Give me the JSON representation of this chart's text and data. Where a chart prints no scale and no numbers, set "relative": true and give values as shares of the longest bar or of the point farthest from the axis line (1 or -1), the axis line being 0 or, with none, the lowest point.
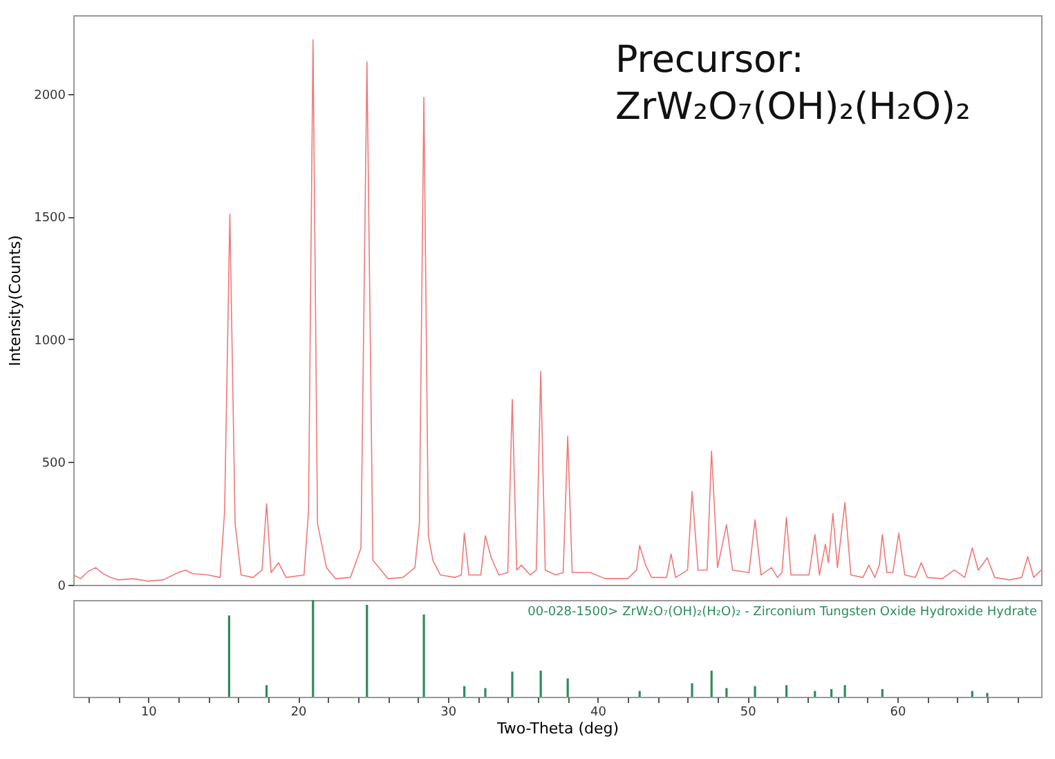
{
  "chart_data": [
    {
      "type": "line",
      "ylabel": "Intensity(Counts)",
      "annotations": [
        "Precursor:",
        "ZrW₂O₇(OH)₂(H₂O)₂"
      ],
      "xlim": [
        5,
        69.6
      ],
      "ylim": [
        0,
        2320
      ],
      "yticks": [
        0,
        500,
        1000,
        1500,
        2000
      ],
      "tick_labels": "y",
      "grid": false,
      "legend": false,
      "series": [
        {
          "color": "#f07878",
          "x": [
            5,
            5.5,
            6,
            6.5,
            7,
            7.5,
            8,
            9,
            10,
            11,
            12,
            12.5,
            13,
            14,
            14.8,
            15.1,
            15.45,
            15.8,
            16.2,
            17.0,
            17.6,
            17.9,
            18.2,
            18.7,
            19.2,
            20.4,
            20.7,
            21.0,
            21.3,
            21.9,
            22.5,
            23.5,
            24.2,
            24.6,
            25.0,
            26,
            27,
            27.8,
            28.1,
            28.4,
            28.7,
            29.0,
            29.5,
            30.5,
            30.9,
            31.1,
            31.4,
            32.2,
            32.5,
            32.9,
            33.4,
            34.0,
            34.3,
            34.6,
            34.9,
            35.5,
            35.9,
            36.2,
            36.5,
            37.2,
            37.7,
            38.0,
            38.3,
            39.5,
            40.5,
            42.0,
            42.6,
            42.8,
            43.2,
            43.6,
            44.6,
            44.9,
            45.2,
            46.0,
            46.3,
            46.7,
            47.3,
            47.6,
            48.0,
            48.6,
            49.0,
            50.1,
            50.5,
            50.9,
            51.6,
            52.0,
            52.3,
            52.6,
            52.9,
            54.1,
            54.5,
            54.8,
            55.2,
            55.4,
            55.7,
            56.0,
            56.5,
            56.9,
            57.7,
            58.1,
            58.5,
            58.8,
            59.0,
            59.3,
            59.7,
            60.1,
            60.5,
            61.2,
            61.6,
            62.0,
            63.0,
            63.8,
            64.5,
            65.0,
            65.4,
            66.0,
            66.5,
            67.5,
            68.3,
            68.7,
            69.1,
            69.6
          ],
          "values": [
            40,
            25,
            55,
            70,
            45,
            30,
            20,
            25,
            15,
            20,
            50,
            60,
            45,
            40,
            30,
            300,
            1510,
            250,
            40,
            30,
            60,
            330,
            50,
            90,
            30,
            40,
            300,
            2220,
            250,
            70,
            25,
            30,
            150,
            2130,
            100,
            25,
            30,
            70,
            250,
            1985,
            200,
            100,
            40,
            30,
            40,
            210,
            40,
            40,
            200,
            110,
            40,
            50,
            755,
            60,
            80,
            40,
            60,
            870,
            60,
            40,
            50,
            605,
            50,
            50,
            25,
            25,
            60,
            160,
            80,
            30,
            30,
            125,
            30,
            60,
            380,
            60,
            60,
            545,
            70,
            245,
            60,
            50,
            265,
            40,
            70,
            30,
            50,
            275,
            40,
            40,
            205,
            40,
            165,
            90,
            290,
            70,
            335,
            40,
            30,
            80,
            30,
            80,
            205,
            50,
            50,
            210,
            40,
            30,
            90,
            30,
            25,
            60,
            30,
            150,
            60,
            110,
            30,
            20,
            30,
            115,
            30,
            60
          ]
        }
      ]
    },
    {
      "type": "bar",
      "relative": true,
      "xlabel": "Two-Theta (deg)",
      "xlim": [
        5,
        69.6
      ],
      "tick_labels": "x",
      "legend": "top right",
      "xticks": [
        {
          "value": 6,
          "label": null
        },
        {
          "value": 8,
          "label": null
        },
        10,
        {
          "value": 12,
          "label": null
        },
        {
          "value": 14,
          "label": null
        },
        {
          "value": 16,
          "label": null
        },
        {
          "value": 18,
          "label": null
        },
        20,
        {
          "value": 22,
          "label": null
        },
        {
          "value": 24,
          "label": null
        },
        {
          "value": 26,
          "label": null
        },
        {
          "value": 28,
          "label": null
        },
        30,
        {
          "value": 32,
          "label": null
        },
        {
          "value": 34,
          "label": null
        },
        {
          "value": 36,
          "label": null
        },
        {
          "value": 38,
          "label": null
        },
        40,
        {
          "value": 42,
          "label": null
        },
        {
          "value": 44,
          "label": null
        },
        {
          "value": 46,
          "label": null
        },
        {
          "value": 48,
          "label": null
        },
        50,
        {
          "value": 52,
          "label": null
        },
        {
          "value": 54,
          "label": null
        },
        {
          "value": 56,
          "label": null
        },
        {
          "value": 58,
          "label": null
        },
        60,
        {
          "value": 62,
          "label": null
        },
        {
          "value": 64,
          "label": null
        },
        {
          "value": 66,
          "label": null
        },
        {
          "value": 68,
          "label": null
        }
      ],
      "series": [
        {
          "name": "00-028-1500> ZrW₂O₇(OH)₂(H₂O)₂ - Zirconium Tungsten Oxide Hydroxide Hydrate",
          "color": "#2e8b5c",
          "x": [
            15.4,
            17.9,
            21.0,
            24.6,
            28.4,
            31.1,
            32.5,
            34.3,
            36.2,
            38.0,
            42.8,
            46.3,
            47.6,
            48.6,
            50.5,
            52.6,
            54.5,
            55.6,
            56.5,
            59.0,
            65.0,
            66.0
          ],
          "values": [
            0.84,
            0.12,
            1,
            0.95,
            0.85,
            0.11,
            0.09,
            0.26,
            0.27,
            0.19,
            0.06,
            0.14,
            0.27,
            0.09,
            0.11,
            0.12,
            0.06,
            0.08,
            0.12,
            0.08,
            0.06,
            0.04
          ]
        }
      ]
    }
  ]
}
